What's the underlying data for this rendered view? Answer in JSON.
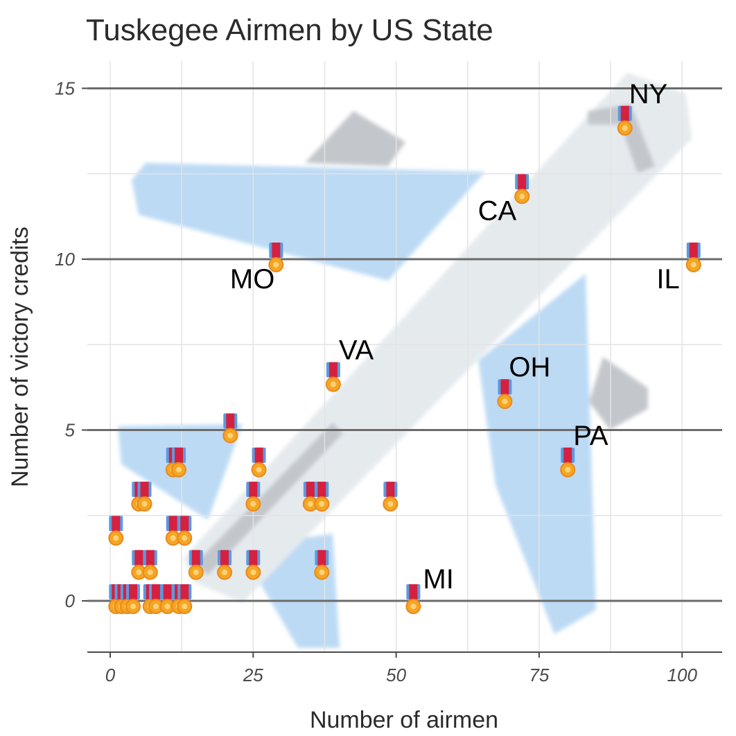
{
  "chart_data": {
    "type": "scatter",
    "title": "Tuskegee Airmen by US State",
    "xlabel": "Number of airmen",
    "ylabel": "Number of victory credits",
    "xlim": [
      -4,
      107
    ],
    "ylim": [
      -1.5,
      15.8
    ],
    "x_ticks": [
      0,
      25,
      50,
      75,
      100
    ],
    "y_ticks": [
      0,
      5,
      10,
      15
    ],
    "grid": true,
    "marker_icon": "medal-icon",
    "background_icon": "airplane-icon",
    "points": [
      {
        "x": 90,
        "y": 14,
        "label": "NY"
      },
      {
        "x": 72,
        "y": 12,
        "label": "CA"
      },
      {
        "x": 29,
        "y": 10,
        "label": "MO"
      },
      {
        "x": 102,
        "y": 10,
        "label": "IL"
      },
      {
        "x": 39,
        "y": 6.5,
        "label": "VA"
      },
      {
        "x": 69,
        "y": 6,
        "label": "OH"
      },
      {
        "x": 80,
        "y": 4,
        "label": "PA"
      },
      {
        "x": 53,
        "y": 0,
        "label": "MI"
      },
      {
        "x": 21,
        "y": 5
      },
      {
        "x": 11,
        "y": 4
      },
      {
        "x": 12,
        "y": 4
      },
      {
        "x": 26,
        "y": 4
      },
      {
        "x": 5,
        "y": 3
      },
      {
        "x": 6,
        "y": 3
      },
      {
        "x": 25,
        "y": 3
      },
      {
        "x": 35,
        "y": 3
      },
      {
        "x": 37,
        "y": 3
      },
      {
        "x": 49,
        "y": 3
      },
      {
        "x": 1,
        "y": 2
      },
      {
        "x": 11,
        "y": 2
      },
      {
        "x": 13,
        "y": 2
      },
      {
        "x": 5,
        "y": 1
      },
      {
        "x": 7,
        "y": 1
      },
      {
        "x": 15,
        "y": 1
      },
      {
        "x": 20,
        "y": 1
      },
      {
        "x": 25,
        "y": 1
      },
      {
        "x": 37,
        "y": 1
      },
      {
        "x": 1,
        "y": 0
      },
      {
        "x": 2,
        "y": 0
      },
      {
        "x": 3,
        "y": 0
      },
      {
        "x": 4,
        "y": 0
      },
      {
        "x": 7,
        "y": 0
      },
      {
        "x": 8,
        "y": 0
      },
      {
        "x": 10,
        "y": 0
      },
      {
        "x": 12,
        "y": 0
      },
      {
        "x": 13,
        "y": 0
      }
    ],
    "colors": {
      "major_grid": "#6b6b6b",
      "minor_grid": "#e3e3e3",
      "plane_body": "#dfe5ea",
      "plane_wing": "#a9cff2",
      "plane_tail": "#b4b9bd",
      "medal_ribbon_red": "#d6203f",
      "medal_ribbon_blue": "#5a9be0",
      "medal_gold": "#f5a623",
      "medal_gold_edge": "#e8891e"
    }
  }
}
